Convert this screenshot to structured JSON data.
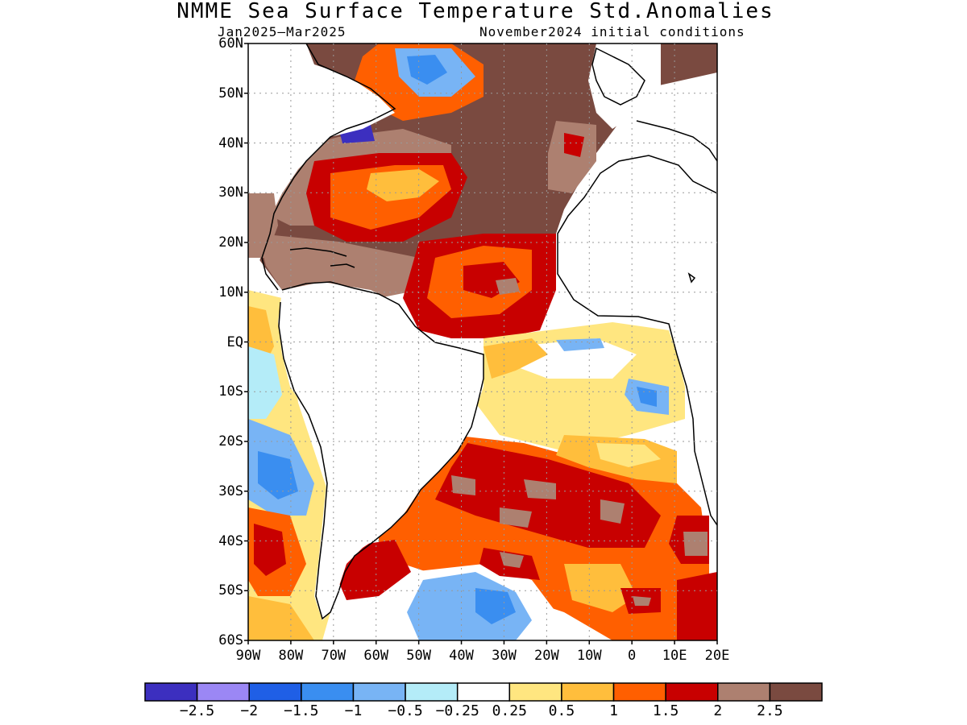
{
  "title": "NMME Sea Surface Temperature Std.Anomalies",
  "subtitle_left": "Jan2025–Mar2025",
  "subtitle_right": "November2024 initial conditions",
  "y_ticks": [
    "60N",
    "50N",
    "40N",
    "30N",
    "20N",
    "10N",
    "EQ",
    "10S",
    "20S",
    "30S",
    "40S",
    "50S",
    "60S"
  ],
  "x_ticks": [
    "90W",
    "80W",
    "70W",
    "60W",
    "50W",
    "40W",
    "30W",
    "20W",
    "10W",
    "0",
    "10E",
    "20E"
  ],
  "colorbar": {
    "labels": [
      "−2.5",
      "−2",
      "−1.5",
      "−1",
      "−0.5",
      "−0.25",
      "0.25",
      "0.5",
      "1",
      "1.5",
      "2",
      "2.5"
    ],
    "colors": [
      "#3c2fbf",
      "#9b87f5",
      "#1f5fe6",
      "#3a8ef0",
      "#78b4f5",
      "#b4ecf8",
      "#ffffff",
      "#ffe680",
      "#ffbe3c",
      "#ff5f00",
      "#c80000",
      "#ad8070",
      "#7a4a40"
    ]
  },
  "map": {
    "extent": {
      "lon_min": -90,
      "lon_max": 20,
      "lat_min": -60,
      "lat_max": 60
    },
    "land_color": "#ffffff",
    "coastline_color": "#000000"
  }
}
